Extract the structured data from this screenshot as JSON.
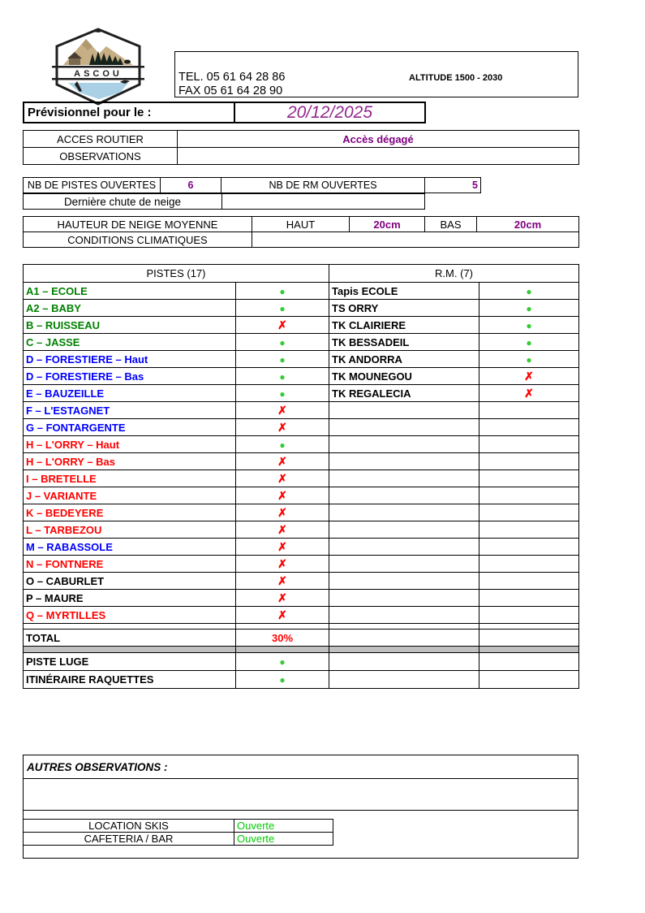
{
  "colors": {
    "purple": "#800080",
    "date_purple": "#93278f",
    "green_text": "#008000",
    "blue_text": "#0000ff",
    "red_text": "#ff0000",
    "black_text": "#000000",
    "dot_green": "#33cc33",
    "cross_red": "#ff0000",
    "open_green": "#00cc00",
    "gray_band": "#c0c0c0"
  },
  "logo": {
    "name": "ASCOU"
  },
  "contact": {
    "tel": "TEL. 05 61 64 28 86",
    "fax": "FAX 05 61 64 28 90",
    "altitude": "ALTITUDE 1500 - 2030"
  },
  "previsionnel": {
    "label": "Prévisionnel pour le :",
    "date": "20/12/2025"
  },
  "acces": {
    "rows": [
      {
        "label": "ACCES ROUTIER",
        "value": "Accès dégagé"
      },
      {
        "label": "OBSERVATIONS",
        "value": ""
      }
    ]
  },
  "counts": {
    "pistes_label": "NB DE PISTES OUVERTES",
    "pistes_value": "6",
    "rm_label": "NB DE RM OUVERTES",
    "rm_value": "5",
    "last_snow_label": "Dernière chute de neige",
    "last_snow_value": ""
  },
  "snow": {
    "label": "HAUTEUR DE NEIGE MOYENNE",
    "haut_label": "HAUT",
    "haut_value": "20cm",
    "bas_label": "BAS",
    "bas_value": "20cm",
    "conditions_label": "CONDITIONS CLIMATIQUES",
    "conditions_value": ""
  },
  "status_table": {
    "pistes_header": "PISTES  (17)",
    "rm_header": "R.M. (7)",
    "open_symbol": "●",
    "closed_symbol": "✗",
    "rows": [
      {
        "piste": "A1 – ECOLE",
        "piste_color": "green",
        "piste_open": true,
        "rm": "Tapis ECOLE",
        "rm_open": true
      },
      {
        "piste": "A2 – BABY",
        "piste_color": "green",
        "piste_open": true,
        "rm": "TS ORRY",
        "rm_open": true
      },
      {
        "piste": "B – RUISSEAU",
        "piste_color": "green",
        "piste_open": false,
        "rm": "TK CLAIRIERE",
        "rm_open": true
      },
      {
        "piste": "C – JASSE",
        "piste_color": "green",
        "piste_open": true,
        "rm": "TK BESSADEIL",
        "rm_open": true
      },
      {
        "piste": "D – FORESTIERE – Haut",
        "piste_color": "blue",
        "piste_open": true,
        "rm": "TK ANDORRA",
        "rm_open": true
      },
      {
        "piste": "D – FORESTIERE – Bas",
        "piste_color": "blue",
        "piste_open": true,
        "rm": "TK MOUNEGOU",
        "rm_open": false
      },
      {
        "piste": "E – BAUZEILLE",
        "piste_color": "blue",
        "piste_open": true,
        "rm": "TK REGALECIA",
        "rm_open": false
      },
      {
        "piste": "F – L'ESTAGNET",
        "piste_color": "blue",
        "piste_open": false,
        "rm": null,
        "rm_open": null
      },
      {
        "piste": "G – FONTARGENTE",
        "piste_color": "blue",
        "piste_open": false,
        "rm": null,
        "rm_open": null
      },
      {
        "piste": "H – L'ORRY – Haut",
        "piste_color": "red",
        "piste_open": true,
        "rm": null,
        "rm_open": null
      },
      {
        "piste": "H – L'ORRY – Bas",
        "piste_color": "red",
        "piste_open": false,
        "rm": null,
        "rm_open": null
      },
      {
        "piste": " I – BRETELLE",
        "piste_color": "red",
        "piste_open": false,
        "rm": null,
        "rm_open": null
      },
      {
        "piste": "J – VARIANTE",
        "piste_color": "red",
        "piste_open": false,
        "rm": null,
        "rm_open": null
      },
      {
        "piste": "K – BEDEYERE",
        "piste_color": "red",
        "piste_open": false,
        "rm": null,
        "rm_open": null
      },
      {
        "piste": "L – TARBEZOU",
        "piste_color": "red",
        "piste_open": false,
        "rm": null,
        "rm_open": null
      },
      {
        "piste": "M – RABASSOLE",
        "piste_color": "blue",
        "piste_open": false,
        "rm": null,
        "rm_open": null
      },
      {
        "piste": "N – FONTNERE",
        "piste_color": "red",
        "piste_open": false,
        "rm": null,
        "rm_open": null
      },
      {
        "piste": "O – CABURLET",
        "piste_color": "black",
        "piste_open": false,
        "rm": null,
        "rm_open": null
      },
      {
        "piste": "P – MAURE",
        "piste_color": "black",
        "piste_open": false,
        "rm": null,
        "rm_open": null
      },
      {
        "piste": "Q – MYRTILLES",
        "piste_color": "red",
        "piste_open": false,
        "rm": null,
        "rm_open": null
      }
    ],
    "total_label": "TOTAL",
    "total_value": "30%",
    "extra_rows": [
      {
        "label": "PISTE LUGE",
        "open": true
      },
      {
        "label": "ITINÉRAIRE RAQUETTES",
        "open": true
      }
    ]
  },
  "other_observations_label": "AUTRES OBSERVATIONS :",
  "services": {
    "rows": [
      {
        "label": "LOCATION SKIS",
        "value": "Ouverte"
      },
      {
        "label": "CAFETERIA / BAR",
        "value": "Ouverte"
      }
    ]
  }
}
